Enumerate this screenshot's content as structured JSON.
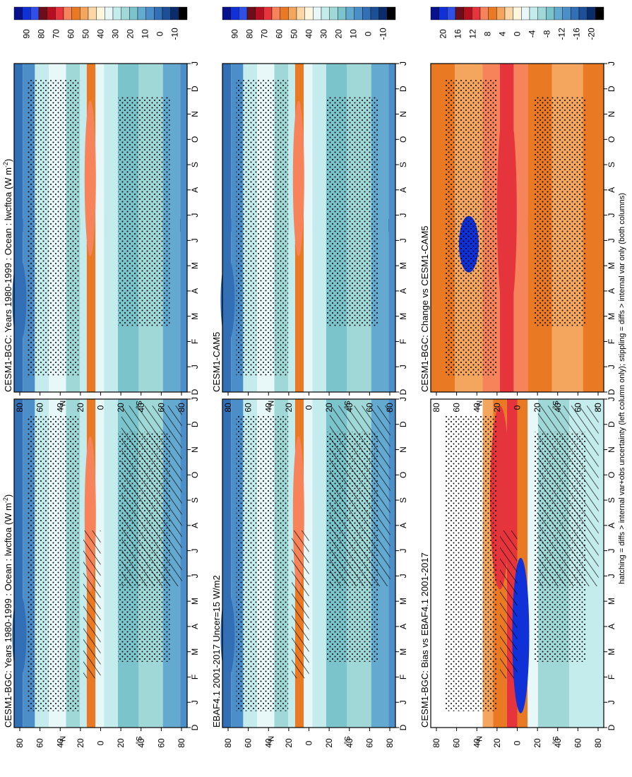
{
  "figure": {
    "caption": "hatching = diffs > internal var+obs uncertainty (left column only); stippling = diffs > internal var only (both columns)"
  },
  "colors": {
    "abs_levels": [
      "90",
      "80",
      "70",
      "60",
      "50",
      "40",
      "30",
      "20",
      "10",
      "0",
      "-10"
    ],
    "abs_palette": [
      "#08118c",
      "#1030d8",
      "#2f4fe6",
      "#6c0e1a",
      "#b40f20",
      "#e6343c",
      "#f6835a",
      "#e97a23",
      "#f4a55e",
      "#fbd7a8",
      "#fff6e0",
      "#e8f8f8",
      "#c4ecec",
      "#9fd8d6",
      "#7cc4cc",
      "#63a9d0",
      "#4c8ec8",
      "#326fb5",
      "#1c4f96",
      "#0b2b6b",
      "#000000"
    ],
    "diff_levels": [
      "20",
      "16",
      "12",
      "8",
      "4",
      "0",
      "-4",
      "-8",
      "-12",
      "-16",
      "-20"
    ],
    "diff_palette": [
      "#08118c",
      "#1030d8",
      "#2f4fe6",
      "#6c0e1a",
      "#b40f20",
      "#e6343c",
      "#f6835a",
      "#e97a23",
      "#f4a55e",
      "#fbd7a8",
      "#fff6e0",
      "#e8f8f8",
      "#c4ecec",
      "#9fd8d6",
      "#7cc4cc",
      "#63a9d0",
      "#4c8ec8",
      "#326fb5",
      "#1c4f96",
      "#0b2b6b",
      "#000000"
    ]
  },
  "chart_data": [
    {
      "id": "p1",
      "type": "heatmap",
      "title": "CESM1-BGC: Years 1980-1999 : Ocean : lwcftoa (W m",
      "title_sup": "-2",
      "title_end": ")",
      "x_ticks": [
        "D",
        "J",
        "F",
        "M",
        "A",
        "M",
        "J",
        "J",
        "A",
        "S",
        "O",
        "N",
        "D",
        "J"
      ],
      "y_ticks": [
        "80",
        "60",
        "40",
        "20",
        "0",
        "20",
        "40",
        "60",
        "80"
      ],
      "y_unit_n": "°N",
      "y_unit_s": "°S",
      "colorbar": "abs",
      "hatch": true,
      "stipple": true
    },
    {
      "id": "p2",
      "type": "heatmap",
      "title": "CESM1-BGC: Years 1980-1999 : Ocean : lwcftoa (W m",
      "title_sup": "-2",
      "title_end": ")",
      "x_ticks": [
        "D",
        "J",
        "F",
        "M",
        "A",
        "M",
        "J",
        "J",
        "A",
        "S",
        "O",
        "N",
        "D",
        "J"
      ],
      "y_ticks": [
        "80",
        "60",
        "40",
        "20",
        "0",
        "20",
        "40",
        "60",
        "80"
      ],
      "y_unit_n": "°N",
      "y_unit_s": "°S",
      "colorbar": "abs",
      "hatch": false,
      "stipple": true
    },
    {
      "id": "p3",
      "type": "heatmap",
      "title": "EBAF4.1 2001-2017 Uncer=15 W/m2",
      "title_sup": "",
      "title_end": "",
      "x_ticks": [
        "D",
        "J",
        "F",
        "M",
        "A",
        "M",
        "J",
        "J",
        "A",
        "S",
        "O",
        "N",
        "D",
        "J"
      ],
      "y_ticks": [
        "80",
        "60",
        "40",
        "20",
        "0",
        "20",
        "40",
        "60",
        "80"
      ],
      "y_unit_n": "°N",
      "y_unit_s": "°S",
      "colorbar": "abs",
      "hatch": true,
      "stipple": true
    },
    {
      "id": "p4",
      "type": "heatmap",
      "title": "CESM1-CAM5",
      "title_sup": "",
      "title_end": "",
      "x_ticks": [
        "D",
        "J",
        "F",
        "M",
        "A",
        "M",
        "J",
        "J",
        "A",
        "S",
        "O",
        "N",
        "D",
        "J"
      ],
      "y_ticks": [
        "80",
        "60",
        "40",
        "20",
        "0",
        "20",
        "40",
        "60",
        "80"
      ],
      "y_unit_n": "°N",
      "y_unit_s": "°S",
      "colorbar": "abs",
      "hatch": false,
      "stipple": true
    },
    {
      "id": "p5",
      "type": "heatmap",
      "title": "CESM1-BGC: Bias vs EBAF4.1 2001-2017",
      "title_sup": "",
      "title_end": "",
      "x_ticks": [
        "D",
        "J",
        "F",
        "M",
        "A",
        "M",
        "J",
        "J",
        "A",
        "S",
        "O",
        "N",
        "D",
        "J"
      ],
      "y_ticks": [
        "80",
        "60",
        "40",
        "20",
        "0",
        "20",
        "40",
        "60",
        "80"
      ],
      "y_unit_n": "°N",
      "y_unit_s": "°S",
      "colorbar": "diff",
      "hatch": true,
      "stipple": true
    },
    {
      "id": "p6",
      "type": "heatmap",
      "title": "CESM1-BGC: Change vs CESM1-CAM5",
      "title_sup": "",
      "title_end": "",
      "x_ticks": [
        "D",
        "J",
        "F",
        "M",
        "A",
        "M",
        "J",
        "J",
        "A",
        "S",
        "O",
        "N",
        "D",
        "J"
      ],
      "y_ticks": [
        "80",
        "60",
        "40",
        "20",
        "0",
        "20",
        "40",
        "60",
        "80"
      ],
      "y_unit_n": "°N",
      "y_unit_s": "°S",
      "colorbar": "diff",
      "hatch": false,
      "stipple": true
    }
  ]
}
